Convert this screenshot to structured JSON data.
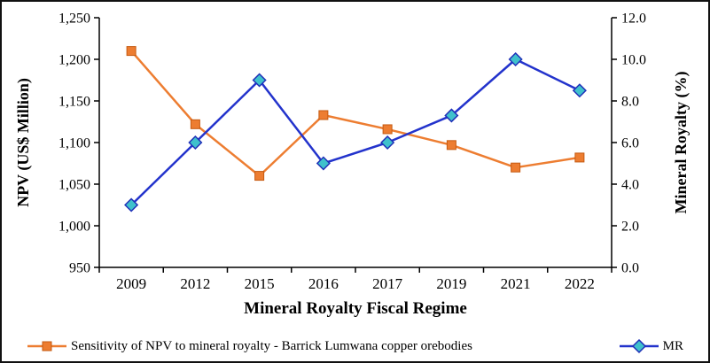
{
  "chart_data": {
    "type": "line",
    "categories": [
      "2009",
      "2012",
      "2015",
      "2016",
      "2017",
      "2019",
      "2021",
      "2022"
    ],
    "series": [
      {
        "name": "Sensitivity of NPV to mineral royalty - Barrick Lumwana copper orebodies",
        "axis": "left",
        "values": [
          1210,
          1122,
          1060,
          1133,
          1116,
          1097,
          1070,
          1082
        ],
        "color": "#ED7D31",
        "marker": "square",
        "marker_fill": "#ED7D31",
        "marker_stroke": "#C55A11"
      },
      {
        "name": "MR",
        "axis": "right",
        "values": [
          3.0,
          6.0,
          9.0,
          5.0,
          6.0,
          7.3,
          10.0,
          8.5
        ],
        "color": "#2333CC",
        "marker": "diamond",
        "marker_fill": "#3FC1CC",
        "marker_stroke": "#1F2FB8"
      }
    ],
    "left_axis": {
      "title": "NPV (US$ Million)",
      "min": 950,
      "max": 1250,
      "step": 50,
      "tick_labels": [
        "950",
        "1,000",
        "1,050",
        "1,100",
        "1,150",
        "1,200",
        "1,250"
      ]
    },
    "right_axis": {
      "title": "Mineral Royalty (%)",
      "min": 0,
      "max": 12,
      "step": 2,
      "tick_labels": [
        "0.0",
        "2.0",
        "4.0",
        "6.0",
        "8.0",
        "10.0",
        "12.0"
      ]
    },
    "xlabel": "Mineral Royalty Fiscal Regime",
    "grid": false,
    "legend_position": "bottom"
  },
  "legend": {
    "npv_label": "Sensitivity of NPV to mineral royalty - Barrick Lumwana copper orebodies",
    "mr_label": "MR"
  }
}
